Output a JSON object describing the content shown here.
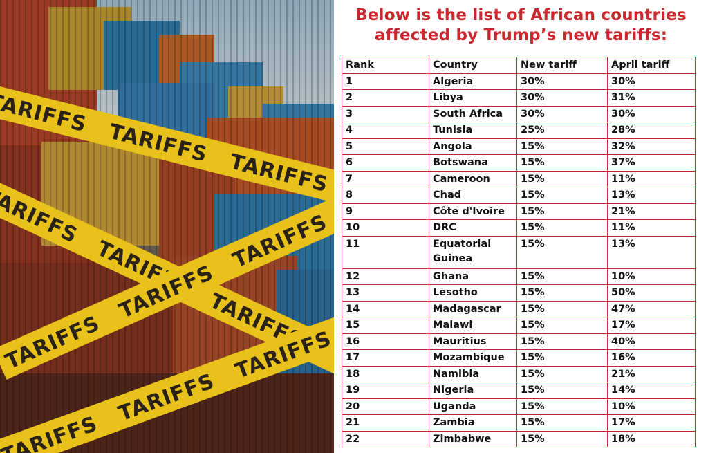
{
  "photo": {
    "tape_text": "TARIFFS",
    "colors": {
      "tape": "#e8c21a",
      "tape_text": "#2a2216",
      "sky": "#b9d4e4"
    }
  },
  "headline": {
    "line1": "Below is the list of African countries",
    "line2": "affected by Trump’s new tariffs:",
    "color": "#c9262d"
  },
  "table": {
    "headers": [
      "Rank",
      "Country",
      "New tariff",
      "April tariff"
    ],
    "rows": [
      [
        "1",
        "Algeria",
        "30%",
        "30%"
      ],
      [
        "2",
        "Libya",
        "30%",
        "31%"
      ],
      [
        "3",
        "South Africa",
        "30%",
        "30%"
      ],
      [
        "4",
        "Tunisia",
        "25%",
        "28%"
      ],
      [
        "5",
        "Angola",
        "15%",
        "32%"
      ],
      [
        "6",
        "Botswana",
        "15%",
        "37%"
      ],
      [
        "7",
        "Cameroon",
        "15%",
        "11%"
      ],
      [
        "8",
        "Chad",
        "15%",
        "13%"
      ],
      [
        "9",
        "Côte d'Ivoire",
        "15%",
        "21%"
      ],
      [
        "10",
        "DRC",
        "15%",
        "11%"
      ],
      [
        "11",
        "Equatorial Guinea",
        "15%",
        "13%"
      ],
      [
        "12",
        "Ghana",
        "15%",
        "10%"
      ],
      [
        "13",
        "Lesotho",
        "15%",
        "50%"
      ],
      [
        "14",
        "Madagascar",
        "15%",
        "47%"
      ],
      [
        "15",
        "Malawi",
        "15%",
        "17%"
      ],
      [
        "16",
        "Mauritius",
        "15%",
        "40%"
      ],
      [
        "17",
        "Mozambique",
        "15%",
        "16%"
      ],
      [
        "18",
        "Namibia",
        "15%",
        "21%"
      ],
      [
        "19",
        "Nigeria",
        "15%",
        "14%"
      ],
      [
        "20",
        "Uganda",
        "15%",
        "10%"
      ],
      [
        "21",
        "Zambia",
        "15%",
        "17%"
      ],
      [
        "22",
        "Zimbabwe",
        "15%",
        "18%"
      ]
    ],
    "border_color": "#c0262d"
  }
}
